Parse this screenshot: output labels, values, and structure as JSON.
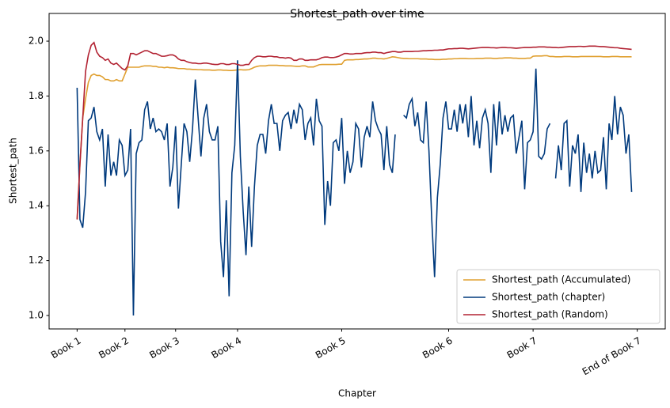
{
  "chart_data": {
    "type": "line",
    "title": "Shortest_path over time",
    "xlabel": "Chapter",
    "ylabel": "Shortest_path",
    "x": [
      0,
      1,
      2,
      3,
      4,
      5,
      6,
      7,
      8,
      9,
      10,
      11,
      12,
      13,
      14,
      15,
      16,
      17,
      18,
      19,
      20,
      21,
      22,
      23,
      24,
      25,
      26,
      27,
      28,
      29,
      30,
      31,
      32,
      33,
      34,
      35,
      36,
      37,
      38,
      39,
      40,
      41,
      42,
      43,
      44,
      45,
      46,
      47,
      48,
      49,
      50,
      51,
      52,
      53,
      54,
      55,
      56,
      57,
      58,
      59,
      60,
      61,
      62,
      63,
      64,
      65,
      66,
      67,
      68,
      69,
      70,
      71,
      72,
      73,
      74,
      75,
      76,
      77,
      78,
      79,
      80,
      81,
      82,
      83,
      84,
      85,
      86,
      87,
      88,
      89,
      90,
      91,
      92,
      93,
      94,
      95,
      96,
      97,
      98,
      99,
      100,
      101,
      102,
      103,
      104,
      105,
      106,
      107,
      108,
      109,
      110,
      111,
      112,
      113,
      114,
      115,
      116,
      117,
      118,
      119,
      120,
      121,
      122,
      123,
      124,
      125,
      126,
      127,
      128,
      129,
      130,
      131,
      132,
      133,
      134,
      135,
      136,
      137,
      138,
      139,
      140,
      141,
      142,
      143,
      144,
      145,
      146,
      147,
      148,
      149,
      150,
      151,
      152,
      153,
      154,
      155,
      156,
      157,
      158,
      159,
      160,
      161,
      162,
      163,
      164,
      165,
      166,
      167,
      168,
      169,
      170,
      171,
      172,
      173,
      174,
      175,
      176,
      177,
      178,
      179,
      180,
      181,
      182,
      183,
      184,
      185,
      186,
      187,
      188,
      189,
      190,
      191,
      192,
      193,
      194,
      195,
      196,
      197
    ],
    "series": [
      {
        "name": "Shortest_path (Accumulated)",
        "color": "#e0a030",
        "values": [
          1.35,
          1.55,
          1.72,
          1.79,
          1.85,
          1.875,
          1.88,
          1.875,
          1.875,
          1.87,
          1.86,
          1.86,
          1.855,
          1.855,
          1.86,
          1.855,
          1.855,
          1.88,
          1.905,
          1.905,
          1.905,
          1.905,
          1.905,
          1.908,
          1.91,
          1.91,
          1.91,
          1.908,
          1.908,
          1.905,
          1.905,
          1.903,
          1.905,
          1.903,
          1.903,
          1.902,
          1.9,
          1.9,
          1.9,
          1.898,
          1.898,
          1.897,
          1.897,
          1.896,
          1.896,
          1.895,
          1.895,
          1.895,
          1.894,
          1.894,
          1.895,
          1.895,
          1.894,
          1.894,
          1.893,
          1.893,
          1.894,
          1.895,
          1.896,
          1.895,
          1.895,
          1.896,
          1.9,
          1.905,
          1.908,
          1.91,
          1.91,
          1.91,
          1.912,
          1.912,
          1.912,
          1.912,
          1.911,
          1.911,
          1.91,
          1.91,
          1.91,
          1.909,
          1.908,
          1.908,
          1.91,
          1.91,
          1.906,
          1.906,
          1.906,
          1.91,
          1.914,
          1.915,
          1.915,
          1.915,
          1.915,
          1.915,
          1.915,
          1.916,
          1.916,
          1.93,
          1.932,
          1.932,
          1.932,
          1.933,
          1.933,
          1.934,
          1.935,
          1.935,
          1.936,
          1.938,
          1.938,
          1.936,
          1.936,
          1.935,
          1.937,
          1.94,
          1.943,
          1.942,
          1.94,
          1.938,
          1.937,
          1.937,
          1.936,
          1.936,
          1.936,
          1.936,
          1.935,
          1.935,
          1.935,
          1.934,
          1.934,
          1.933,
          1.933,
          1.933,
          1.934,
          1.934,
          1.935,
          1.935,
          1.936,
          1.936,
          1.937,
          1.937,
          1.937,
          1.936,
          1.936,
          1.936,
          1.937,
          1.937,
          1.937,
          1.938,
          1.938,
          1.938,
          1.937,
          1.937,
          1.938,
          1.938,
          1.939,
          1.939,
          1.939,
          1.938,
          1.938,
          1.937,
          1.937,
          1.937,
          1.938,
          1.938,
          1.945,
          1.946,
          1.946,
          1.946,
          1.947,
          1.947,
          1.944,
          1.944,
          1.943,
          1.943,
          1.943,
          1.944,
          1.944,
          1.944,
          1.943,
          1.943,
          1.943,
          1.944,
          1.944,
          1.944,
          1.944,
          1.944,
          1.944,
          1.944,
          1.944,
          1.943,
          1.943,
          1.943,
          1.944,
          1.944,
          1.944,
          1.943,
          1.943,
          1.943,
          1.943,
          1.943
        ]
      },
      {
        "name": "Shortest_path (chapter)",
        "color": "#003a7d",
        "values": [
          1.83,
          1.35,
          1.32,
          1.45,
          1.71,
          1.72,
          1.76,
          1.67,
          1.64,
          1.68,
          1.47,
          1.66,
          1.51,
          1.56,
          1.51,
          1.64,
          1.62,
          1.51,
          1.53,
          1.68,
          1.0,
          1.59,
          1.63,
          1.64,
          1.75,
          1.78,
          1.68,
          1.72,
          1.67,
          1.68,
          1.67,
          1.64,
          1.7,
          1.47,
          1.54,
          1.69,
          1.39,
          1.55,
          1.7,
          1.67,
          1.56,
          1.68,
          1.86,
          1.72,
          1.58,
          1.72,
          1.77,
          1.67,
          1.64,
          1.64,
          1.69,
          1.27,
          1.14,
          1.42,
          1.07,
          1.52,
          1.62,
          1.93,
          1.58,
          1.38,
          1.22,
          1.47,
          1.25,
          1.47,
          1.62,
          1.66,
          1.66,
          1.59,
          1.71,
          1.77,
          1.7,
          1.7,
          1.6,
          1.71,
          1.73,
          1.74,
          1.68,
          1.75,
          1.7,
          1.77,
          1.75,
          1.64,
          1.7,
          1.72,
          1.62,
          1.79,
          1.71,
          1.69,
          1.33,
          1.49,
          1.4,
          1.63,
          1.64,
          1.6,
          1.72,
          1.48,
          1.6,
          1.52,
          1.56,
          1.7,
          1.68,
          1.54,
          1.65,
          1.69,
          1.65,
          1.78,
          1.71,
          1.68,
          1.66,
          1.53,
          1.69,
          1.55,
          1.52,
          1.66,
          null,
          null,
          1.73,
          1.72,
          1.77,
          1.79,
          1.69,
          1.74,
          1.64,
          1.63,
          1.78,
          1.6,
          1.35,
          1.14,
          1.43,
          1.55,
          1.72,
          1.78,
          1.68,
          1.68,
          1.75,
          1.67,
          1.77,
          1.7,
          1.77,
          1.65,
          1.8,
          1.62,
          1.71,
          1.61,
          1.72,
          1.75,
          1.7,
          1.52,
          1.77,
          1.62,
          1.78,
          1.66,
          1.73,
          1.67,
          1.72,
          1.73,
          1.59,
          1.65,
          1.71,
          1.46,
          1.63,
          1.64,
          1.67,
          1.9,
          1.58,
          1.57,
          1.59,
          1.68,
          1.7,
          null,
          1.5,
          1.62,
          1.53,
          1.7,
          1.71,
          1.47,
          1.62,
          1.59,
          1.66,
          1.45,
          1.63,
          1.52,
          1.59,
          1.5,
          1.6,
          1.52,
          1.53,
          1.65,
          1.46,
          1.7,
          1.64,
          1.8,
          1.66,
          1.76,
          1.73,
          1.59,
          1.66,
          1.45
        ]
      },
      {
        "name": "Shortest_path (Random)",
        "color": "#b22232",
        "values": [
          1.35,
          1.55,
          1.72,
          1.89,
          1.95,
          1.985,
          1.995,
          1.96,
          1.945,
          1.94,
          1.93,
          1.935,
          1.92,
          1.915,
          1.92,
          1.91,
          1.9,
          1.895,
          1.91,
          1.955,
          1.955,
          1.95,
          1.955,
          1.96,
          1.965,
          1.965,
          1.96,
          1.955,
          1.955,
          1.95,
          1.945,
          1.945,
          1.947,
          1.95,
          1.95,
          1.945,
          1.935,
          1.93,
          1.93,
          1.925,
          1.922,
          1.92,
          1.92,
          1.918,
          1.918,
          1.92,
          1.92,
          1.918,
          1.916,
          1.915,
          1.915,
          1.918,
          1.918,
          1.915,
          1.915,
          1.918,
          1.918,
          1.915,
          1.912,
          1.912,
          1.915,
          1.915,
          1.93,
          1.94,
          1.945,
          1.945,
          1.943,
          1.943,
          1.945,
          1.945,
          1.943,
          1.943,
          1.94,
          1.94,
          1.938,
          1.94,
          1.938,
          1.93,
          1.93,
          1.935,
          1.935,
          1.93,
          1.93,
          1.932,
          1.932,
          1.932,
          1.935,
          1.94,
          1.942,
          1.942,
          1.94,
          1.94,
          1.942,
          1.945,
          1.95,
          1.955,
          1.955,
          1.953,
          1.953,
          1.955,
          1.955,
          1.955,
          1.957,
          1.958,
          1.958,
          1.96,
          1.96,
          1.958,
          1.958,
          1.955,
          1.958,
          1.96,
          1.962,
          1.962,
          1.96,
          1.96,
          1.962,
          1.962,
          1.962,
          1.962,
          1.963,
          1.963,
          1.964,
          1.965,
          1.965,
          1.966,
          1.966,
          1.967,
          1.967,
          1.968,
          1.968,
          1.97,
          1.972,
          1.972,
          1.973,
          1.973,
          1.974,
          1.974,
          1.973,
          1.972,
          1.973,
          1.974,
          1.975,
          1.976,
          1.977,
          1.977,
          1.977,
          1.976,
          1.976,
          1.975,
          1.976,
          1.977,
          1.977,
          1.976,
          1.976,
          1.975,
          1.974,
          1.975,
          1.976,
          1.977,
          1.977,
          1.977,
          1.978,
          1.978,
          1.979,
          1.979,
          1.979,
          1.978,
          1.978,
          1.977,
          1.977,
          1.976,
          1.977,
          1.978,
          1.979,
          1.98,
          1.98,
          1.98,
          1.981,
          1.981,
          1.98,
          1.981,
          1.982,
          1.982,
          1.982,
          1.981,
          1.98,
          1.98,
          1.979,
          1.978,
          1.977,
          1.976,
          1.976,
          1.974,
          1.973,
          1.972,
          1.971,
          1.97
        ]
      }
    ],
    "xlim": [
      -9.95,
      208.95
    ],
    "xticks": [
      {
        "value": 0,
        "label": "Book 1"
      },
      {
        "value": 17,
        "label": "Book 2"
      },
      {
        "value": 35,
        "label": "Book 3"
      },
      {
        "value": 57,
        "label": "Book 4"
      },
      {
        "value": 94,
        "label": "Book 5"
      },
      {
        "value": 132,
        "label": "Book 6"
      },
      {
        "value": 162,
        "label": "Book 7"
      },
      {
        "value": 199,
        "label": "End of Book 7"
      }
    ],
    "ylim": [
      0.951,
      2.101
    ],
    "yticks": [
      {
        "value": 1,
        "label": "1.0"
      },
      1.2,
      1.4,
      1.6,
      1.8,
      {
        "value": 2,
        "label": "2.0"
      }
    ],
    "grid": false,
    "legend": "lower right"
  }
}
